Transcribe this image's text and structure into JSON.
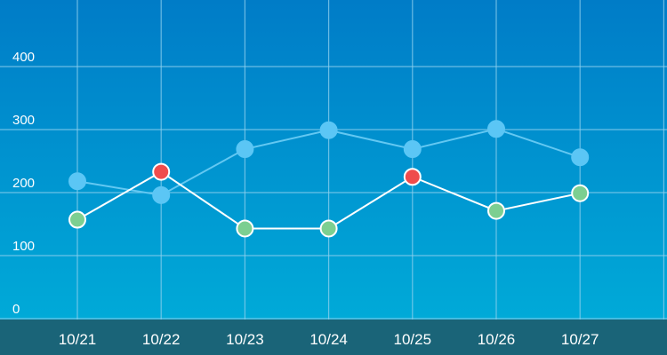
{
  "chart_data": {
    "type": "line",
    "categories": [
      "10/21",
      "10/22",
      "10/23",
      "10/24",
      "10/25",
      "10/26",
      "10/27"
    ],
    "y_ticks": [
      "0",
      "100",
      "200",
      "300",
      "400"
    ],
    "ylim": [
      0,
      400
    ],
    "grid": true,
    "legend": "none",
    "series": [
      {
        "values": [
          218,
          196,
          269,
          299,
          269,
          301,
          256
        ],
        "line_color": "#63c8f2",
        "point_fill": [
          "#5bc6f5",
          "#5bc6f5",
          "#5bc6f5",
          "#5bc6f5",
          "#5bc6f5",
          "#5bc6f5",
          "#5bc6f5"
        ]
      },
      {
        "values": [
          157,
          233,
          143,
          143,
          225,
          171,
          199
        ],
        "line_color": "#ffffff",
        "point_fill": [
          "#7ccf91",
          "#ef4c4c",
          "#7ccf91",
          "#7ccf91",
          "#ef4c4c",
          "#7ccf91",
          "#7ccf91"
        ]
      }
    ]
  },
  "colors": {
    "bg_top": "#007cc7",
    "bg_bottom": "#00aad8",
    "axis_band": "#1a6478",
    "grid": "#8fd0ee"
  }
}
